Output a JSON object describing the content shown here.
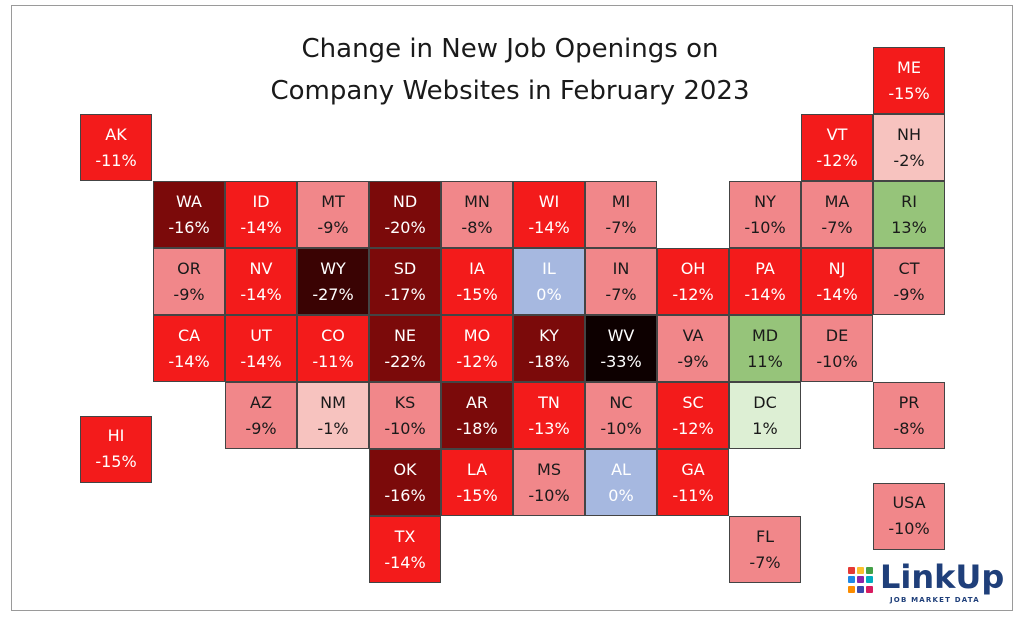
{
  "title_line1": "Change in New Job Openings on",
  "title_line2": "Company Websites in February 2023",
  "logo": {
    "name": "LinkUp",
    "tagline": "JOB MARKET DATA"
  },
  "chart_data": {
    "type": "heatmap",
    "title": "Change in New Job Openings on Company Websites in February 2023",
    "unit": "%",
    "colors": {
      "positive_strong": "#96c47a",
      "positive_weak": "#ddefd4",
      "zero": "#a6b8e0",
      "neg_very_weak": "#f7c3bf",
      "neg_weak": "#f1878a",
      "neg_mid": "#f31b1b",
      "neg_strong": "#7b0a0a",
      "neg_very_strong": "#3a0303",
      "neg_extreme": "#0d0000"
    },
    "states": [
      {
        "code": "ME",
        "value": -15,
        "row": 0,
        "col": 11
      },
      {
        "code": "AK",
        "value": -11,
        "row": 1,
        "col": 0
      },
      {
        "code": "VT",
        "value": -12,
        "row": 1,
        "col": 10
      },
      {
        "code": "NH",
        "value": -2,
        "row": 1,
        "col": 11
      },
      {
        "code": "WA",
        "value": -16,
        "row": 2,
        "col": 1
      },
      {
        "code": "ID",
        "value": -14,
        "row": 2,
        "col": 2
      },
      {
        "code": "MT",
        "value": -9,
        "row": 2,
        "col": 3
      },
      {
        "code": "ND",
        "value": -20,
        "row": 2,
        "col": 4
      },
      {
        "code": "MN",
        "value": -8,
        "row": 2,
        "col": 5
      },
      {
        "code": "WI",
        "value": -14,
        "row": 2,
        "col": 6
      },
      {
        "code": "MI",
        "value": -7,
        "row": 2,
        "col": 7
      },
      {
        "code": "NY",
        "value": -10,
        "row": 2,
        "col": 9
      },
      {
        "code": "MA",
        "value": -7,
        "row": 2,
        "col": 10
      },
      {
        "code": "RI",
        "value": 13,
        "row": 2,
        "col": 11
      },
      {
        "code": "OR",
        "value": -9,
        "row": 3,
        "col": 1
      },
      {
        "code": "NV",
        "value": -14,
        "row": 3,
        "col": 2
      },
      {
        "code": "WY",
        "value": -27,
        "row": 3,
        "col": 3
      },
      {
        "code": "SD",
        "value": -17,
        "row": 3,
        "col": 4
      },
      {
        "code": "IA",
        "value": -15,
        "row": 3,
        "col": 5
      },
      {
        "code": "IL",
        "value": 0,
        "row": 3,
        "col": 6
      },
      {
        "code": "IN",
        "value": -7,
        "row": 3,
        "col": 7
      },
      {
        "code": "OH",
        "value": -12,
        "row": 3,
        "col": 8
      },
      {
        "code": "PA",
        "value": -14,
        "row": 3,
        "col": 9
      },
      {
        "code": "NJ",
        "value": -14,
        "row": 3,
        "col": 10
      },
      {
        "code": "CT",
        "value": -9,
        "row": 3,
        "col": 11
      },
      {
        "code": "CA",
        "value": -14,
        "row": 4,
        "col": 1
      },
      {
        "code": "UT",
        "value": -14,
        "row": 4,
        "col": 2
      },
      {
        "code": "CO",
        "value": -11,
        "row": 4,
        "col": 3
      },
      {
        "code": "NE",
        "value": -22,
        "row": 4,
        "col": 4
      },
      {
        "code": "MO",
        "value": -12,
        "row": 4,
        "col": 5
      },
      {
        "code": "KY",
        "value": -18,
        "row": 4,
        "col": 6
      },
      {
        "code": "WV",
        "value": -33,
        "row": 4,
        "col": 7
      },
      {
        "code": "VA",
        "value": -9,
        "row": 4,
        "col": 8
      },
      {
        "code": "MD",
        "value": 11,
        "row": 4,
        "col": 9
      },
      {
        "code": "DE",
        "value": -10,
        "row": 4,
        "col": 10
      },
      {
        "code": "AZ",
        "value": -9,
        "row": 5,
        "col": 2
      },
      {
        "code": "NM",
        "value": -1,
        "row": 5,
        "col": 3
      },
      {
        "code": "KS",
        "value": -10,
        "row": 5,
        "col": 4
      },
      {
        "code": "AR",
        "value": -18,
        "row": 5,
        "col": 5
      },
      {
        "code": "TN",
        "value": -13,
        "row": 5,
        "col": 6
      },
      {
        "code": "NC",
        "value": -10,
        "row": 5,
        "col": 7
      },
      {
        "code": "SC",
        "value": -12,
        "row": 5,
        "col": 8
      },
      {
        "code": "DC",
        "value": 1,
        "row": 5,
        "col": 9
      },
      {
        "code": "PR",
        "value": -8,
        "row": 5,
        "col": 11
      },
      {
        "code": "HI",
        "value": -15,
        "row": 5.5,
        "col": 0
      },
      {
        "code": "OK",
        "value": -16,
        "row": 6,
        "col": 4
      },
      {
        "code": "LA",
        "value": -15,
        "row": 6,
        "col": 5
      },
      {
        "code": "MS",
        "value": -10,
        "row": 6,
        "col": 6
      },
      {
        "code": "AL",
        "value": 0,
        "row": 6,
        "col": 7
      },
      {
        "code": "GA",
        "value": -11,
        "row": 6,
        "col": 8
      },
      {
        "code": "USA",
        "value": -10,
        "row": 6.5,
        "col": 11
      },
      {
        "code": "TX",
        "value": -14,
        "row": 7,
        "col": 4
      },
      {
        "code": "FL",
        "value": -7,
        "row": 7,
        "col": 9
      }
    ]
  }
}
